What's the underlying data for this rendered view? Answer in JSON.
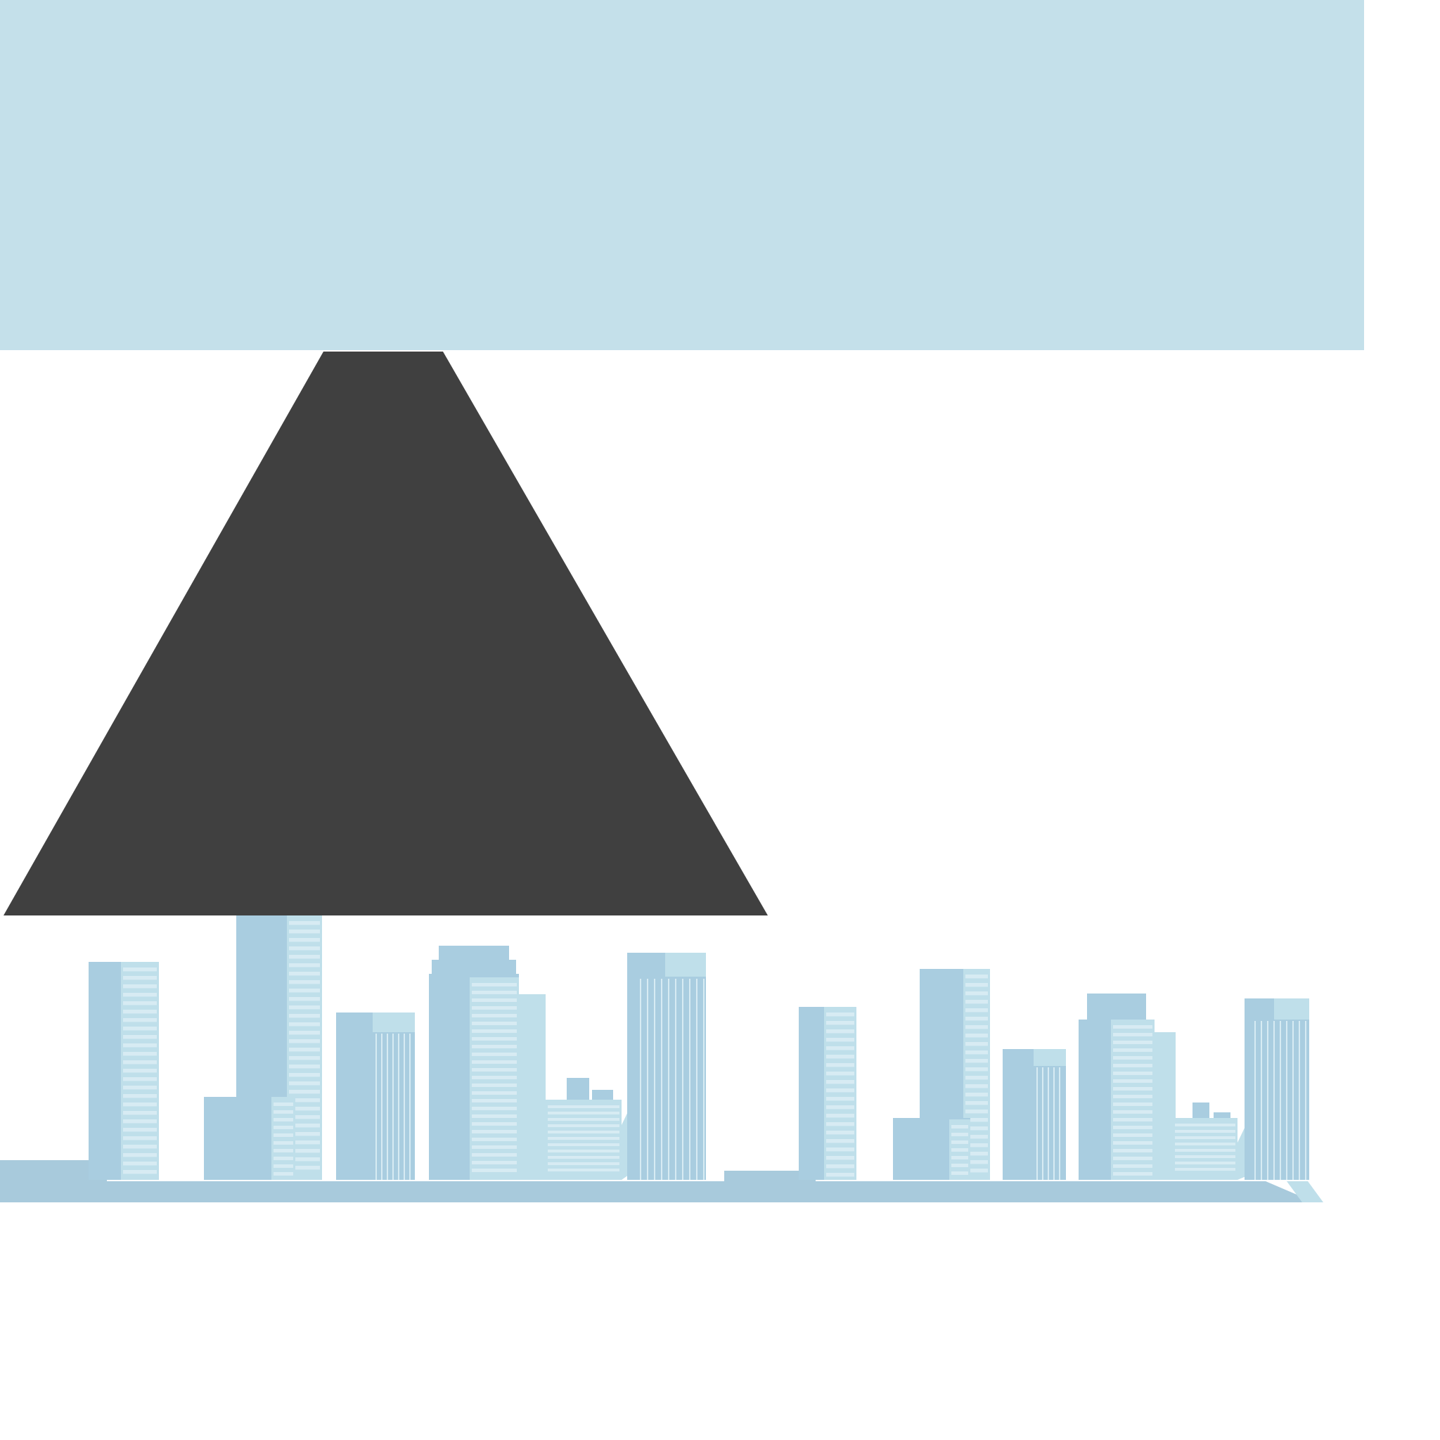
{
  "colors": {
    "background": "#ffffff",
    "sky_band": "#c4e0ea",
    "triangle": "#404040",
    "building_main": "#a9cde0",
    "building_light": "#bfdfea",
    "building_stripe": "#d7ebf3",
    "ground": "#a8cadc"
  },
  "shapes": {
    "top_band": "rectangle",
    "center_shape": "trapezoid",
    "skyline": "city-skyline-silhouette"
  }
}
